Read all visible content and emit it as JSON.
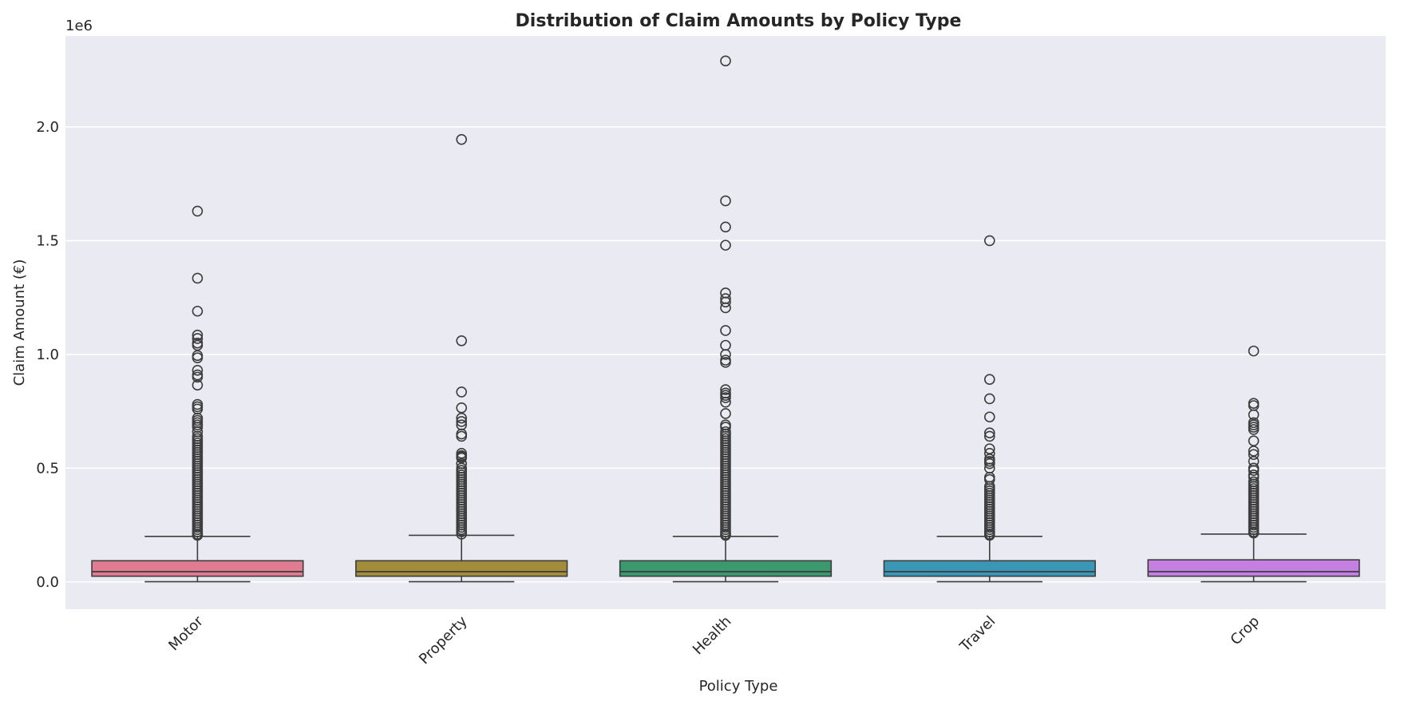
{
  "chart_data": {
    "type": "boxplot",
    "title": "Distribution of Claim Amounts by Policy Type",
    "xlabel": "Policy Type",
    "ylabel": "Claim Amount (€)",
    "y_offset_label": "1e6",
    "ylim": [
      -0.12,
      2.4
    ],
    "y_ticks": [
      0.0,
      0.5,
      1.0,
      1.5,
      2.0
    ],
    "y_tick_labels": [
      "0.0",
      "0.5",
      "1.0",
      "1.5",
      "2.0"
    ],
    "grid": true,
    "categories": [
      "Motor",
      "Property",
      "Health",
      "Travel",
      "Crop"
    ],
    "boxes": [
      {
        "name": "Motor",
        "color": "#e07b91",
        "whisker_low": 0.001,
        "q1": 0.025,
        "median": 0.045,
        "q3": 0.093,
        "whisker_high": 0.2,
        "outliers": [
          1.63,
          1.335,
          1.19,
          1.085,
          1.07,
          1.05,
          1.04,
          0.995,
          0.985,
          0.93,
          0.91,
          0.9,
          0.865,
          0.78,
          0.77,
          0.76,
          0.72,
          0.71,
          0.7,
          0.69,
          0.68,
          0.66,
          0.64,
          0.63,
          0.62,
          0.61,
          0.6,
          0.59,
          0.58,
          0.57,
          0.56,
          0.55,
          0.54,
          0.53,
          0.52,
          0.51,
          0.5,
          0.49,
          0.48,
          0.47,
          0.46,
          0.45,
          0.44,
          0.43,
          0.42,
          0.41,
          0.4,
          0.39,
          0.38,
          0.37,
          0.36,
          0.35,
          0.34,
          0.33,
          0.32,
          0.31,
          0.3,
          0.29,
          0.28,
          0.27,
          0.26,
          0.25,
          0.24,
          0.23,
          0.22,
          0.21,
          0.205
        ]
      },
      {
        "name": "Property",
        "color": "#a38c3a",
        "whisker_low": 0.001,
        "q1": 0.025,
        "median": 0.045,
        "q3": 0.093,
        "whisker_high": 0.205,
        "outliers": [
          1.945,
          1.06,
          0.835,
          0.765,
          0.72,
          0.705,
          0.69,
          0.65,
          0.64,
          0.565,
          0.555,
          0.55,
          0.545,
          0.52,
          0.5,
          0.49,
          0.48,
          0.47,
          0.46,
          0.45,
          0.44,
          0.43,
          0.42,
          0.41,
          0.4,
          0.39,
          0.38,
          0.37,
          0.36,
          0.35,
          0.34,
          0.33,
          0.32,
          0.31,
          0.3,
          0.29,
          0.28,
          0.27,
          0.26,
          0.25,
          0.24,
          0.23,
          0.22,
          0.21
        ]
      },
      {
        "name": "Health",
        "color": "#3a9a6e",
        "whisker_low": 0.001,
        "q1": 0.025,
        "median": 0.045,
        "q3": 0.093,
        "whisker_high": 0.2,
        "outliers": [
          2.29,
          1.675,
          1.56,
          1.48,
          1.27,
          1.245,
          1.23,
          1.205,
          1.105,
          1.04,
          1.0,
          0.975,
          0.965,
          0.845,
          0.83,
          0.82,
          0.81,
          0.79,
          0.74,
          0.69,
          0.68,
          0.66,
          0.65,
          0.64,
          0.63,
          0.62,
          0.61,
          0.6,
          0.59,
          0.58,
          0.57,
          0.56,
          0.55,
          0.54,
          0.53,
          0.52,
          0.51,
          0.5,
          0.49,
          0.48,
          0.47,
          0.46,
          0.45,
          0.44,
          0.43,
          0.42,
          0.41,
          0.4,
          0.39,
          0.38,
          0.37,
          0.36,
          0.35,
          0.34,
          0.33,
          0.32,
          0.31,
          0.3,
          0.29,
          0.28,
          0.27,
          0.26,
          0.25,
          0.24,
          0.23,
          0.22,
          0.21,
          0.205
        ]
      },
      {
        "name": "Travel",
        "color": "#3a97b6",
        "whisker_low": 0.001,
        "q1": 0.025,
        "median": 0.045,
        "q3": 0.093,
        "whisker_high": 0.2,
        "outliers": [
          1.5,
          0.89,
          0.805,
          0.725,
          0.655,
          0.64,
          0.585,
          0.565,
          0.54,
          0.53,
          0.52,
          0.5,
          0.46,
          0.45,
          0.42,
          0.41,
          0.4,
          0.39,
          0.38,
          0.37,
          0.36,
          0.35,
          0.34,
          0.33,
          0.32,
          0.31,
          0.3,
          0.29,
          0.28,
          0.27,
          0.26,
          0.25,
          0.24,
          0.23,
          0.22,
          0.21,
          0.205
        ]
      },
      {
        "name": "Crop",
        "color": "#c57fe0",
        "whisker_low": 0.001,
        "q1": 0.025,
        "median": 0.045,
        "q3": 0.097,
        "whisker_high": 0.21,
        "outliers": [
          1.015,
          0.785,
          0.775,
          0.735,
          0.7,
          0.69,
          0.68,
          0.67,
          0.62,
          0.575,
          0.56,
          0.53,
          0.5,
          0.49,
          0.47,
          0.46,
          0.44,
          0.43,
          0.42,
          0.41,
          0.4,
          0.39,
          0.38,
          0.37,
          0.36,
          0.35,
          0.34,
          0.33,
          0.32,
          0.31,
          0.3,
          0.29,
          0.28,
          0.27,
          0.26,
          0.25,
          0.24,
          0.23,
          0.22,
          0.215
        ]
      }
    ]
  }
}
